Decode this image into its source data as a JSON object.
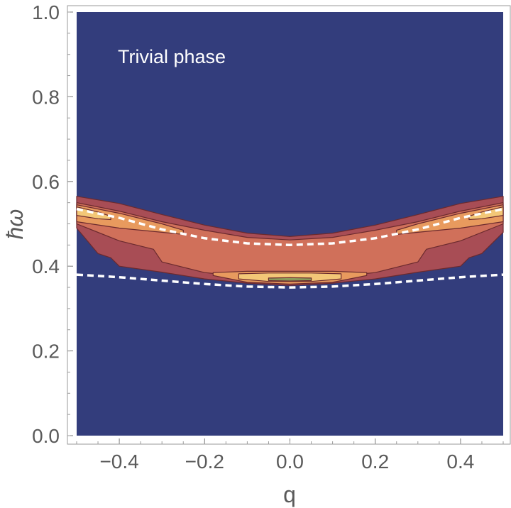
{
  "chart_data": {
    "type": "contour",
    "annotation": "Trivial phase",
    "xlabel": "q",
    "ylabel": "ħω",
    "xlim": [
      -0.5,
      0.5
    ],
    "ylim": [
      0.0,
      1.0
    ],
    "x_ticks": [
      -0.4,
      -0.2,
      0.0,
      0.2,
      0.4
    ],
    "x_tick_labels": [
      "−0.4",
      "−0.2",
      "0.0",
      "0.2",
      "0.4"
    ],
    "y_ticks": [
      0.0,
      0.2,
      0.4,
      0.6,
      0.8,
      1.0
    ],
    "y_tick_labels": [
      "0.0",
      "0.2",
      "0.4",
      "0.6",
      "0.8",
      "1.0"
    ],
    "grid": false,
    "background_color": "#333d7c",
    "contour_colors": [
      "#a84d55",
      "#d0705a",
      "#e89a5e",
      "#f3c777",
      "#8b9a5a"
    ],
    "dashed_curves": [
      {
        "color": "#ffffff",
        "x": [
          -0.5,
          -0.4,
          -0.3,
          -0.2,
          -0.1,
          0.0,
          0.1,
          0.2,
          0.3,
          0.4,
          0.5
        ],
        "y": [
          0.535,
          0.514,
          0.487,
          0.466,
          0.454,
          0.45,
          0.454,
          0.466,
          0.487,
          0.514,
          0.535
        ]
      },
      {
        "color": "#ffffff",
        "x": [
          -0.5,
          -0.4,
          -0.3,
          -0.2,
          -0.1,
          0.0,
          0.1,
          0.2,
          0.3,
          0.4,
          0.5
        ],
        "y": [
          0.38,
          0.374,
          0.366,
          0.358,
          0.352,
          0.35,
          0.352,
          0.358,
          0.366,
          0.374,
          0.38
        ]
      }
    ],
    "contour_levels": [
      {
        "level": 1,
        "upper": {
          "x": [
            -0.5,
            -0.4,
            -0.3,
            -0.2,
            -0.1,
            0.0,
            0.1,
            0.2,
            0.3,
            0.4,
            0.5
          ],
          "y": [
            0.565,
            0.548,
            0.522,
            0.497,
            0.478,
            0.47,
            0.478,
            0.497,
            0.522,
            0.548,
            0.565
          ]
        },
        "lower": {
          "x": [
            0.5,
            0.45,
            0.42,
            0.4,
            0.3,
            0.2,
            0.1,
            0.0,
            -0.1,
            -0.2,
            -0.3,
            -0.4,
            -0.42,
            -0.45,
            -0.5
          ],
          "y": [
            0.48,
            0.43,
            0.42,
            0.4,
            0.386,
            0.37,
            0.36,
            0.355,
            0.36,
            0.37,
            0.386,
            0.4,
            0.42,
            0.43,
            0.49
          ]
        }
      },
      {
        "level": 2,
        "upper": {
          "x": [
            -0.5,
            -0.4,
            -0.3,
            -0.2,
            -0.1,
            0.0,
            0.1,
            0.2,
            0.3,
            0.4,
            0.5
          ],
          "y": [
            0.55,
            0.53,
            0.505,
            0.485,
            0.468,
            0.462,
            0.468,
            0.485,
            0.505,
            0.53,
            0.55
          ]
        },
        "lower": {
          "x": [
            0.5,
            0.4,
            0.32,
            0.3,
            0.2,
            0.1,
            0.0,
            -0.1,
            -0.2,
            -0.3,
            -0.32,
            -0.4,
            -0.5
          ],
          "y": [
            0.5,
            0.46,
            0.44,
            0.41,
            0.385,
            0.375,
            0.37,
            0.375,
            0.385,
            0.41,
            0.44,
            0.46,
            0.5
          ]
        }
      },
      {
        "level": 3,
        "upper": {
          "x": [
            -0.5,
            -0.4,
            -0.3,
            -0.25
          ],
          "y": [
            0.545,
            0.525,
            0.5,
            0.485
          ]
        },
        "lower": {
          "x": [
            -0.25,
            -0.3,
            -0.4,
            -0.5
          ],
          "y": [
            0.475,
            0.48,
            0.49,
            0.505
          ]
        }
      },
      {
        "level": 3,
        "upper": {
          "x": [
            0.5,
            0.4,
            0.3,
            0.25
          ],
          "y": [
            0.545,
            0.525,
            0.5,
            0.485
          ]
        },
        "lower": {
          "x": [
            0.25,
            0.3,
            0.4,
            0.5
          ],
          "y": [
            0.475,
            0.48,
            0.49,
            0.505
          ]
        }
      },
      {
        "level": 3,
        "upper": {
          "x": [
            -0.18,
            -0.1,
            0.0,
            0.1,
            0.18
          ],
          "y": [
            0.385,
            0.388,
            0.388,
            0.388,
            0.385
          ]
        },
        "lower": {
          "x": [
            0.18,
            0.1,
            0.0,
            -0.1,
            -0.18
          ],
          "y": [
            0.378,
            0.362,
            0.358,
            0.362,
            0.378
          ]
        }
      },
      {
        "level": 4,
        "upper": {
          "x": [
            -0.12,
            -0.05,
            0.05,
            0.12
          ],
          "y": [
            0.382,
            0.384,
            0.384,
            0.382
          ]
        },
        "lower": {
          "x": [
            0.12,
            0.05,
            -0.05,
            -0.12
          ],
          "y": [
            0.37,
            0.364,
            0.364,
            0.37
          ]
        }
      },
      {
        "level": 4,
        "upper": {
          "x": [
            -0.5,
            -0.45,
            -0.42
          ],
          "y": [
            0.54,
            0.528,
            0.518
          ]
        },
        "lower": {
          "x": [
            -0.42,
            -0.45,
            -0.5
          ],
          "y": [
            0.51,
            0.512,
            0.52
          ]
        }
      },
      {
        "level": 4,
        "upper": {
          "x": [
            0.5,
            0.45,
            0.42
          ],
          "y": [
            0.54,
            0.528,
            0.518
          ]
        },
        "lower": {
          "x": [
            0.42,
            0.45,
            0.5
          ],
          "y": [
            0.51,
            0.512,
            0.52
          ]
        }
      },
      {
        "level": 5,
        "upper": {
          "x": [
            -0.05,
            0.0,
            0.05
          ],
          "y": [
            0.372,
            0.373,
            0.372
          ]
        },
        "lower": {
          "x": [
            0.05,
            0.0,
            -0.05
          ],
          "y": [
            0.366,
            0.365,
            0.366
          ]
        }
      }
    ]
  }
}
